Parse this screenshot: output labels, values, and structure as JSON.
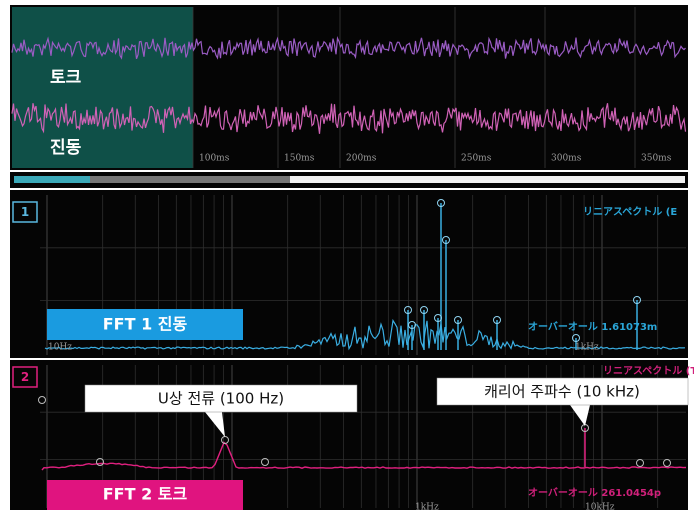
{
  "waveform": {
    "channels": [
      "토크",
      "진동"
    ],
    "time_ticks": [
      "100ms",
      "150ms",
      "200ms",
      "250ms",
      "300ms",
      "350ms"
    ]
  },
  "panels": [
    {
      "number": "1",
      "header": "リニアスペクトル (E",
      "label": "FFT 1 진동",
      "overall": "オーバーオール 1.61073m",
      "freq_labels": [
        "10Hz",
        "1kHz"
      ]
    },
    {
      "number": "2",
      "header": "リニアスペクトル (T",
      "label": "FFT 2 토크",
      "overall": "オーバーオール 261.0454p",
      "freq_labels": [
        "1kHz",
        "10kHz"
      ]
    }
  ],
  "callouts": [
    "U상 전류 (100 Hz)",
    "캐리어 주파수 (10 kHz)"
  ]
}
